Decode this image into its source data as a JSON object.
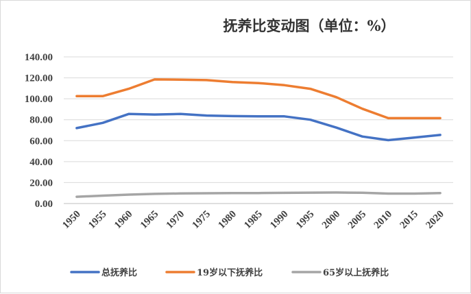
{
  "chart_data": {
    "type": "line",
    "title": "抚养比变动图（单位：%）",
    "xlabel": "",
    "ylabel": "",
    "x": [
      "1950",
      "1955",
      "1960",
      "1965",
      "1970",
      "1975",
      "1980",
      "1985",
      "1990",
      "1995",
      "2000",
      "2005",
      "2010",
      "2015",
      "2020"
    ],
    "ylim": [
      0,
      140
    ],
    "yticks": [
      "0.00",
      "20.00",
      "40.00",
      "60.00",
      "80.00",
      "100.00",
      "120.00",
      "140.00"
    ],
    "grid": true,
    "legend_position": "bottom",
    "series": [
      {
        "name": "总抚养比",
        "color": "#4472c4",
        "values": [
          72,
          77,
          85.5,
          85,
          85.5,
          84,
          83.5,
          83.2,
          83.2,
          80,
          72.5,
          64,
          60.5,
          63,
          65.5
        ]
      },
      {
        "name": "19岁以下抚养比",
        "color": "#ed7d31",
        "values": [
          102.5,
          102.5,
          109.5,
          118.5,
          118.3,
          117.8,
          116,
          115,
          113,
          109.5,
          101.5,
          90.5,
          81.5,
          81.5,
          81.5
        ]
      },
      {
        "name": "65岁以上抚养比",
        "color": "#a5a5a5",
        "values": [
          6.5,
          7.5,
          8.5,
          9.2,
          9.6,
          9.8,
          10,
          10,
          10.2,
          10.4,
          10.5,
          10.3,
          9.5,
          9.5,
          10
        ]
      }
    ]
  }
}
